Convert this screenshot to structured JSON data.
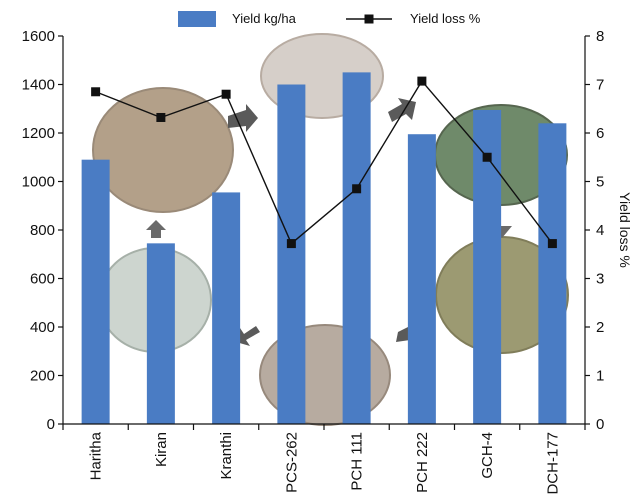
{
  "chart_data": {
    "type": "bar",
    "categories": [
      "Haritha",
      "Kiran",
      "Kranthi",
      "PCS-262",
      "PCH 111",
      "PCH 222",
      "GCH-4",
      "DCH-177"
    ],
    "series": [
      {
        "name": "Yield kg/ha",
        "type": "bar",
        "axis": "left",
        "values": [
          1090,
          745,
          955,
          1400,
          1450,
          1195,
          1295,
          1240
        ]
      },
      {
        "name": "Yield loss %",
        "type": "line",
        "axis": "right",
        "values": [
          6.85,
          6.32,
          6.8,
          3.72,
          4.85,
          7.07,
          5.5,
          3.72
        ]
      }
    ],
    "yleft": {
      "ticks": [
        0,
        200,
        400,
        600,
        800,
        1000,
        1200,
        1400,
        1600
      ],
      "lim": [
        0,
        1600
      ]
    },
    "yright": {
      "label": "Yield loss %",
      "ticks": [
        0,
        1,
        2,
        3,
        4,
        5,
        6,
        7,
        8
      ],
      "lim": [
        0,
        8
      ]
    },
    "legend": {
      "placement": "top"
    },
    "grid": false,
    "colors": {
      "bar": "#4a7cc4",
      "line": "#111111",
      "marker": "#111111"
    }
  }
}
